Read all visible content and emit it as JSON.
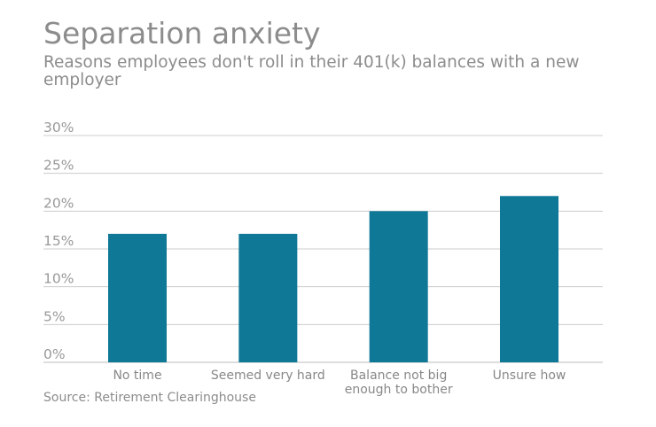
{
  "title": "Separation anxiety",
  "subtitle": "Reasons employees don't roll in their 401(k) balances with a new employer",
  "source": "Source: Retirement Clearinghouse",
  "colors": {
    "bar": "#0e7896",
    "grid": "#cccccc",
    "text": "#8c8c8c"
  },
  "chart_data": {
    "type": "bar",
    "categories": [
      [
        "No time"
      ],
      [
        "Seemed very hard"
      ],
      [
        "Balance not big",
        "enough to bother"
      ],
      [
        "Unsure how"
      ]
    ],
    "values": [
      17,
      17,
      20,
      22
    ],
    "ylim": [
      0,
      30
    ],
    "yticks": [
      0,
      5,
      10,
      15,
      20,
      25,
      30
    ],
    "ytick_labels": [
      "0%",
      "5%",
      "10%",
      "15%",
      "20%",
      "25%",
      "30%"
    ],
    "grid": true,
    "legend": "none"
  }
}
